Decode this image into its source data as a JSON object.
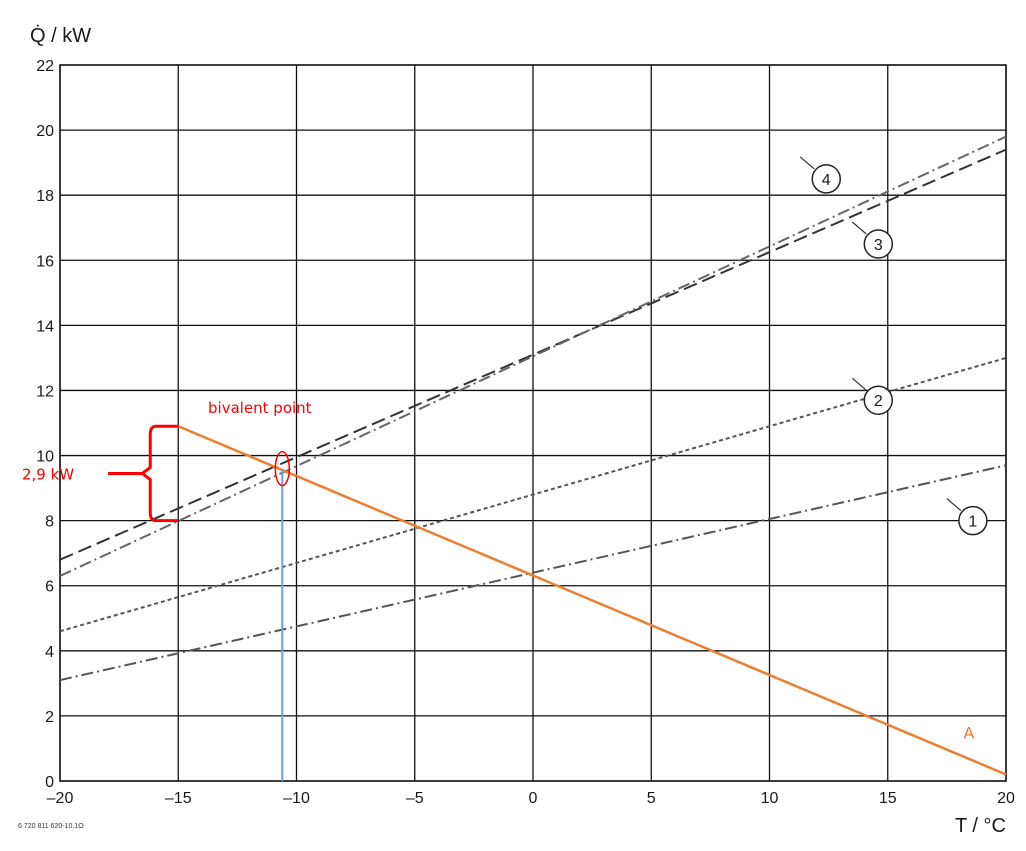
{
  "chart_data": {
    "type": "line",
    "title": "",
    "ylabel": "Q̇ / kW",
    "xlabel": "T / °C",
    "xlim": [
      -20,
      20
    ],
    "ylim": [
      0,
      22
    ],
    "x_ticks": [
      -20,
      -15,
      -10,
      -5,
      0,
      5,
      10,
      15,
      20
    ],
    "x_tick_labels": [
      "–20",
      "–15",
      "–10",
      "–5",
      "0",
      "5",
      "10",
      "15",
      "20"
    ],
    "y_ticks": [
      0,
      2,
      4,
      6,
      8,
      10,
      12,
      14,
      16,
      18,
      20,
      22
    ],
    "y_tick_labels": [
      "0",
      "2",
      "4",
      "6",
      "8",
      "10",
      "12",
      "14",
      "16",
      "18",
      "20",
      "22"
    ],
    "grid": true,
    "series": [
      {
        "name": "1",
        "style": "dashdot",
        "color": "#555555",
        "x": [
          -20,
          20
        ],
        "y": [
          3.1,
          9.7
        ]
      },
      {
        "name": "2",
        "style": "dotted",
        "color": "#555555",
        "x": [
          -20,
          20
        ],
        "y": [
          4.6,
          13.0
        ]
      },
      {
        "name": "3",
        "style": "dashed",
        "color": "#333333",
        "x": [
          -20,
          20
        ],
        "y": [
          6.8,
          19.4
        ]
      },
      {
        "name": "4",
        "style": "dashdot",
        "color": "#666666",
        "x": [
          -20,
          20
        ],
        "y": [
          6.3,
          19.8
        ]
      },
      {
        "name": "A",
        "style": "solid",
        "color": "#ed7d31",
        "x": [
          -15,
          20
        ],
        "y": [
          10.9,
          0.2
        ]
      }
    ],
    "markers": [
      {
        "label": "1",
        "x": 18.6,
        "y": 8.0
      },
      {
        "label": "2",
        "x": 14.6,
        "y": 11.7
      },
      {
        "label": "3",
        "x": 14.6,
        "y": 16.5
      },
      {
        "label": "4",
        "x": 12.4,
        "y": 18.5
      }
    ],
    "annotations": {
      "bivalent_point_label": "bivalent point",
      "bivalent_point": {
        "x": -10.6,
        "y": 9.6
      },
      "gap_label": "2,9 kW",
      "gap_range": {
        "x": -15,
        "y_low": 8.0,
        "y_high": 10.9
      },
      "series_A_label": "A",
      "series_A_label_pos": {
        "x": 18.2,
        "y": 1.3
      }
    },
    "footnote": "6 720 811 620-10.1O",
    "colors": {
      "grid": "#111111",
      "orange": "#ed7d31",
      "annotation_red": "#ff0000",
      "bivalent_line": "#6f9fdf"
    }
  }
}
